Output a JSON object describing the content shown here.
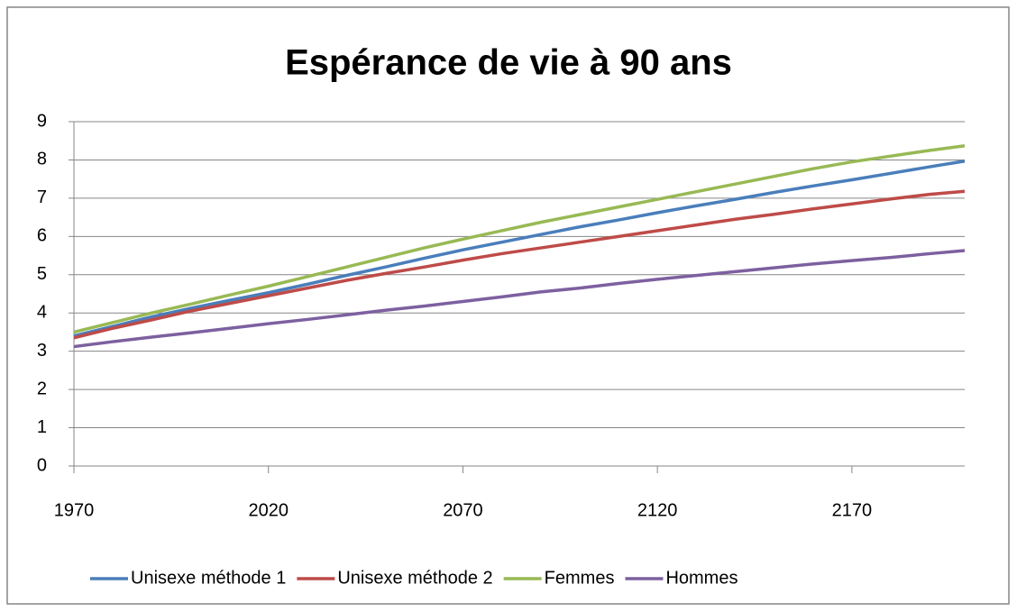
{
  "chart_data": {
    "type": "line",
    "title": "Espérance de vie à 90 ans",
    "x": [
      1970,
      1980,
      1990,
      2000,
      2010,
      2020,
      2030,
      2040,
      2050,
      2060,
      2070,
      2080,
      2090,
      2100,
      2110,
      2120,
      2130,
      2140,
      2150,
      2160,
      2170,
      2180,
      2190,
      2199
    ],
    "series": [
      {
        "name": "Unisexe méthode 1",
        "color": "#4a7ebb",
        "values": [
          3.4,
          3.65,
          3.9,
          4.12,
          4.33,
          4.53,
          4.75,
          4.98,
          5.2,
          5.43,
          5.65,
          5.85,
          6.05,
          6.25,
          6.43,
          6.62,
          6.8,
          6.97,
          7.15,
          7.32,
          7.48,
          7.65,
          7.82,
          7.97
        ]
      },
      {
        "name": "Unisexe méthode 2",
        "color": "#be4b48",
        "values": [
          3.35,
          3.6,
          3.82,
          4.05,
          4.25,
          4.45,
          4.65,
          4.85,
          5.03,
          5.2,
          5.38,
          5.55,
          5.7,
          5.85,
          6.0,
          6.15,
          6.3,
          6.45,
          6.58,
          6.72,
          6.85,
          6.98,
          7.1,
          7.18
        ]
      },
      {
        "name": "Femmes",
        "color": "#98b954",
        "values": [
          3.5,
          3.75,
          4.0,
          4.23,
          4.47,
          4.7,
          4.95,
          5.2,
          5.45,
          5.7,
          5.93,
          6.15,
          6.37,
          6.57,
          6.77,
          6.97,
          7.17,
          7.37,
          7.57,
          7.77,
          7.95,
          8.1,
          8.25,
          8.37
        ]
      },
      {
        "name": "Hommes",
        "color": "#7d60a0",
        "values": [
          3.12,
          3.25,
          3.37,
          3.48,
          3.6,
          3.72,
          3.83,
          3.95,
          4.07,
          4.18,
          4.3,
          4.42,
          4.55,
          4.65,
          4.77,
          4.88,
          4.98,
          5.08,
          5.18,
          5.28,
          5.37,
          5.45,
          5.55,
          5.63
        ]
      }
    ],
    "xlim": [
      1970,
      2199
    ],
    "xticks": [
      1970,
      2020,
      2070,
      2120,
      2170
    ],
    "ylim": [
      0,
      9
    ],
    "yticks": [
      0,
      1,
      2,
      3,
      4,
      5,
      6,
      7,
      8,
      9
    ],
    "grid": true,
    "legend": "bottom"
  }
}
